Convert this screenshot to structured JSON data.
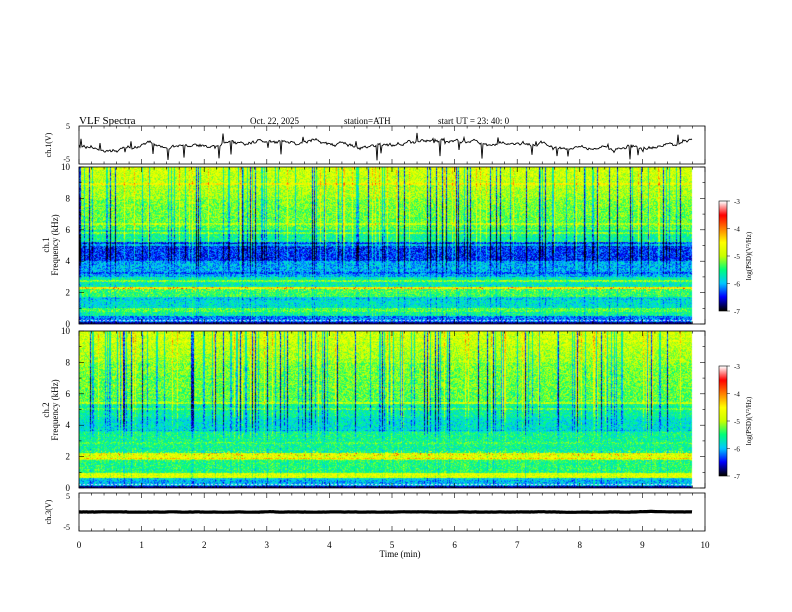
{
  "header": {
    "title": "VLF  Spectra",
    "date": "Oct. 22, 2025",
    "station": "station=ATH",
    "start_ut": "start  UT  =   23: 40: 0"
  },
  "chart_data": {
    "type": "heatmap",
    "xlabel": "Time  (min)",
    "xlim": [
      0,
      10
    ],
    "xticks": [
      "0",
      "1",
      "2",
      "3",
      "4",
      "5",
      "6",
      "7",
      "8",
      "9",
      "10"
    ],
    "panels": [
      {
        "id": "ch1-waveform",
        "type": "line",
        "ylabel": "ch.1(V)",
        "ylim": [
          -5,
          5
        ],
        "yticks": [
          "5",
          "-5"
        ],
        "baseline": 0
      },
      {
        "id": "ch1-spectrogram",
        "type": "heatmap",
        "ylabel_top": "ch.1",
        "ylabel": "Frequency  (kHz)",
        "ylim": [
          0,
          10
        ],
        "yticks": [
          "0",
          "2",
          "4",
          "6",
          "8",
          "10"
        ],
        "colorbar": {
          "label": "log(PSD)(V²/Hz)",
          "range": [
            -7,
            -3
          ],
          "ticks": [
            "-3",
            "-4",
            "-5",
            "-6",
            "-7"
          ]
        }
      },
      {
        "id": "ch2-spectrogram",
        "type": "heatmap",
        "ylabel_top": "ch.2",
        "ylabel": "Frequency  (kHz)",
        "ylim": [
          0,
          10
        ],
        "yticks": [
          "0",
          "2",
          "4",
          "6",
          "8",
          "10"
        ],
        "colorbar": {
          "label": "log(PSD)(V²/Hz)",
          "range": [
            -7,
            -3
          ],
          "ticks": [
            "-3",
            "-4",
            "-5",
            "-6",
            "-7"
          ]
        }
      },
      {
        "id": "ch3-waveform",
        "type": "line",
        "ylabel": "ch.3(V)",
        "ylim": [
          -5,
          5
        ],
        "yticks": [
          "5",
          "-5"
        ],
        "baseline": 0
      }
    ],
    "data_end_min": 9.8
  },
  "colors": {
    "axis": "#000000",
    "waveform": "#000000",
    "colormap": [
      "#000000",
      "#0000ff",
      "#00c8ff",
      "#00ff7a",
      "#c8ff00",
      "#ffff00",
      "#ff8000",
      "#ff0000",
      "#ffffff"
    ]
  }
}
